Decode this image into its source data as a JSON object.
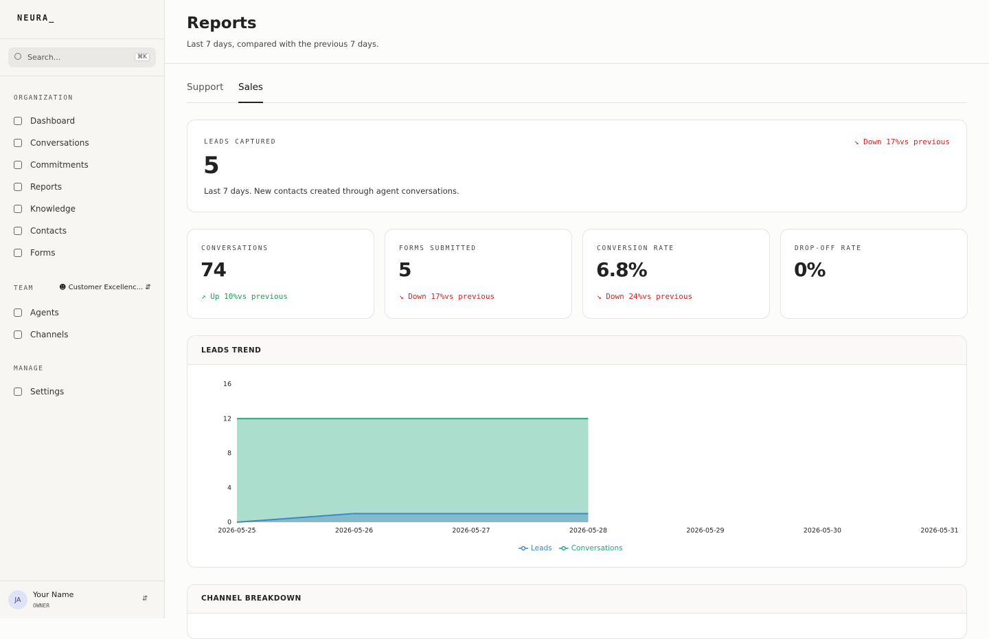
{
  "brand": "NEURA_",
  "search": {
    "placeholder": "Search...",
    "shortcut": "⌘K"
  },
  "nav": {
    "organization": {
      "heading": "ORGANIZATION",
      "items": [
        "Dashboard",
        "Conversations",
        "Commitments",
        "Reports",
        "Knowledge",
        "Contacts",
        "Forms"
      ]
    },
    "team": {
      "heading": "TEAM",
      "selector": "Customer Excellenc...",
      "items": [
        "Agents",
        "Channels"
      ]
    },
    "manage": {
      "heading": "MANAGE",
      "items": [
        "Settings"
      ]
    }
  },
  "user": {
    "initials": "JA",
    "name": "Your Name",
    "role": "OWNER"
  },
  "header": {
    "title": "Reports",
    "subtitle": "Last 7 days, compared with the previous 7 days."
  },
  "tabs": [
    "Support",
    "Sales"
  ],
  "hero": {
    "label": "LEADS CAPTURED",
    "value": "5",
    "trend": "Down 17%",
    "compare": "vs previous",
    "direction": "down",
    "note": "Last 7 days. New contacts created through agent conversations."
  },
  "stats": [
    {
      "label": "CONVERSATIONS",
      "value": "74",
      "trend": "Up 10%",
      "compare": "vs previous",
      "direction": "up"
    },
    {
      "label": "FORMS SUBMITTED",
      "value": "5",
      "trend": "Down 17%",
      "compare": "vs previous",
      "direction": "down"
    },
    {
      "label": "CONVERSION RATE",
      "value": "6.8%",
      "trend": "Down 24%",
      "compare": "vs previous",
      "direction": "down"
    },
    {
      "label": "DROP-OFF RATE",
      "value": "0%"
    }
  ],
  "chart_data": {
    "type": "area",
    "title": "LEADS TREND",
    "x": [
      "2026-05-25",
      "2026-05-26",
      "2026-05-27",
      "2026-05-28",
      "2026-05-29",
      "2026-05-30",
      "2026-05-31"
    ],
    "series": [
      {
        "name": "Leads",
        "color": "#3f86c9",
        "values": [
          0,
          1,
          1,
          1,
          null,
          null,
          null
        ]
      },
      {
        "name": "Conversations",
        "color": "#22a77a",
        "values": [
          12,
          12,
          12,
          12,
          null,
          null,
          null
        ]
      }
    ],
    "ylim": [
      0,
      16
    ],
    "yticks": [
      0,
      4,
      8,
      12,
      16
    ]
  },
  "channel_breakdown": {
    "title": "CHANNEL BREAKDOWN"
  }
}
